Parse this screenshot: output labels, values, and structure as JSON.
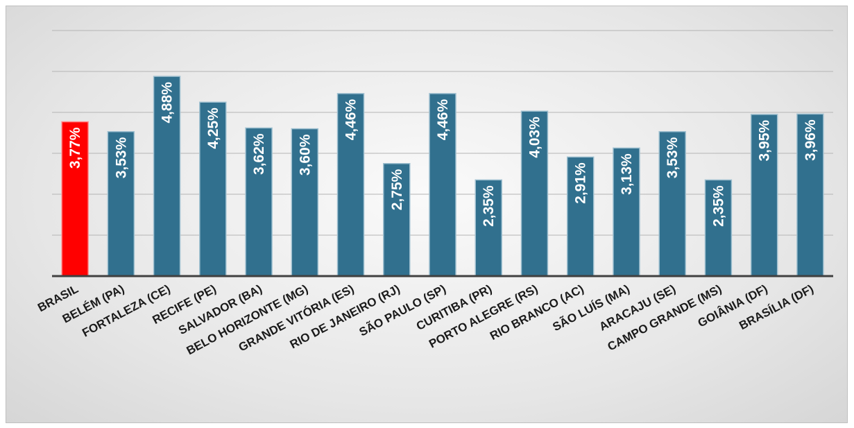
{
  "chart_data": {
    "type": "bar",
    "title": "",
    "xlabel": "",
    "ylabel": "",
    "ylim": [
      0,
      6
    ],
    "grid": true,
    "legend": "none",
    "categories": [
      "BRASIL",
      "BELÉM (PA)",
      "FORTALEZA (CE)",
      "RECIFE (PE)",
      "SALVADOR (BA)",
      "BELO HORIZONTE (MG)",
      "GRANDE VITÓRIA (ES)",
      "RIO DE JANEIRO (RJ)",
      "SÃO PAULO (SP)",
      "CURITIBA (PR)",
      "PORTO ALEGRE (RS)",
      "RIO BRANCO (AC)",
      "SÃO LUÍS (MA)",
      "ARACAJU (SE)",
      "CAMPO GRANDE (MS)",
      "GOIÂNIA (DF)",
      "BRASÍLIA (DF)"
    ],
    "values": [
      3.77,
      3.53,
      4.88,
      4.25,
      3.62,
      3.6,
      4.46,
      2.75,
      4.46,
      2.35,
      4.03,
      2.91,
      3.13,
      3.53,
      2.35,
      3.95,
      3.96
    ],
    "data_labels": [
      "3,77%",
      "3,53%",
      "4,88%",
      "4,25%",
      "3,62%",
      "3,60%",
      "4,46%",
      "2,75%",
      "4,46%",
      "2,35%",
      "4,03%",
      "2,91%",
      "3,13%",
      "3,53%",
      "2,35%",
      "3,95%",
      "3,96%"
    ],
    "highlight_index": 0,
    "colors": {
      "highlight": "#ff0000",
      "bar": "#31708e",
      "grid": "#b4b4b4",
      "axis": "#404040"
    }
  }
}
